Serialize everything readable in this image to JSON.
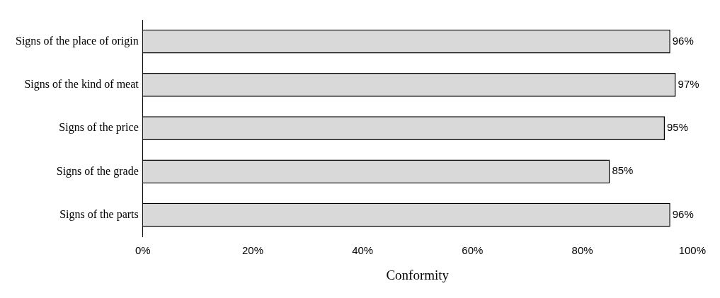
{
  "chart_data": {
    "type": "bar",
    "orientation": "horizontal",
    "xlabel": "Conformity",
    "categories": [
      "Signs of the place of origin",
      "Signs of the kind of meat",
      "Signs of the price",
      "Signs of the grade",
      "Signs of the parts"
    ],
    "values": [
      96,
      97,
      95,
      85,
      96
    ],
    "value_labels": [
      "96%",
      "97%",
      "95%",
      "85%",
      "96%"
    ],
    "color": "#d9d9d9",
    "xlim": [
      0,
      100
    ],
    "xticks": [
      {
        "value": 0,
        "label": "0%"
      },
      {
        "value": 20,
        "label": "20%"
      },
      {
        "value": 40,
        "label": "40%"
      },
      {
        "value": 60,
        "label": "60%"
      },
      {
        "value": 80,
        "label": "80%"
      },
      {
        "value": 100,
        "label": "100%"
      }
    ]
  }
}
